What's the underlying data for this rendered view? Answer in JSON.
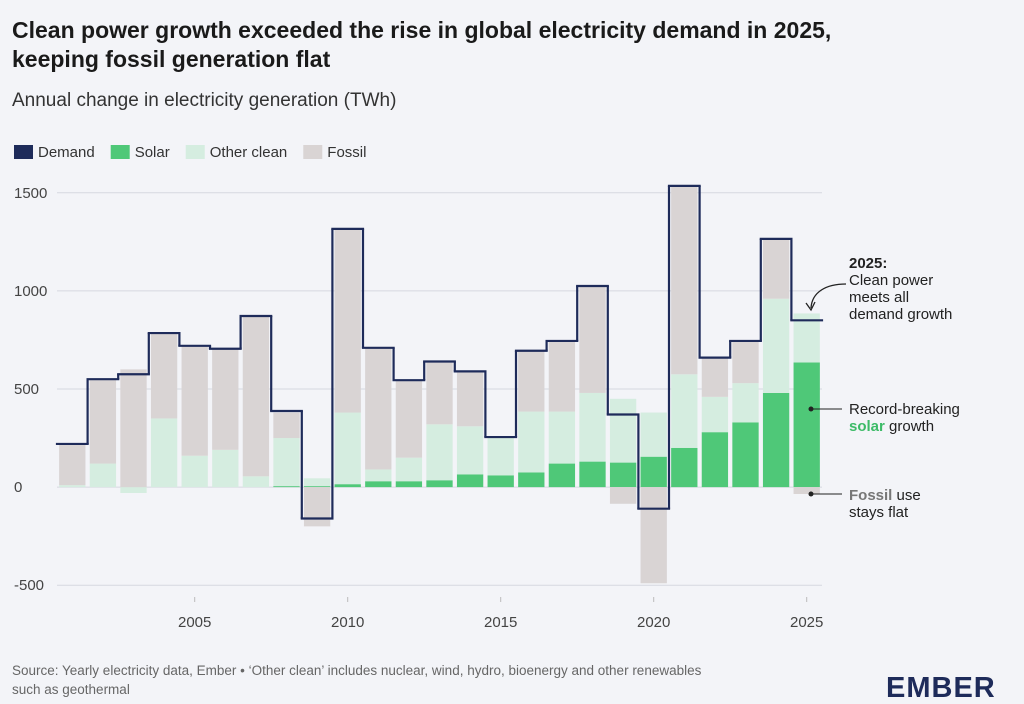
{
  "chart_data": {
    "type": "bar",
    "title": "Clean power growth exceeded the rise in global electricity demand in 2025,",
    "title_line2": "keeping fossil generation flat",
    "subtitle": "Annual change in electricity generation (TWh)",
    "stacked": true,
    "x": [
      2001,
      2002,
      2003,
      2004,
      2005,
      2006,
      2007,
      2008,
      2009,
      2010,
      2011,
      2012,
      2013,
      2014,
      2015,
      2016,
      2017,
      2018,
      2019,
      2020,
      2021,
      2022,
      2023,
      2024,
      2025
    ],
    "series": [
      {
        "name": "Solar",
        "color": "#4fc878",
        "values": [
          0,
          0,
          0,
          0,
          0,
          0,
          0,
          5,
          5,
          15,
          30,
          30,
          35,
          65,
          60,
          75,
          120,
          130,
          125,
          155,
          200,
          280,
          330,
          480,
          635
        ]
      },
      {
        "name": "Other clean",
        "color": "#d5ede0",
        "values": [
          10,
          120,
          -30,
          350,
          160,
          190,
          55,
          245,
          40,
          365,
          60,
          120,
          285,
          245,
          190,
          310,
          265,
          350,
          325,
          225,
          375,
          180,
          200,
          480,
          250
        ]
      },
      {
        "name": "Fossil",
        "color": "#d9d4d4",
        "values": [
          210,
          430,
          600,
          435,
          560,
          515,
          815,
          130,
          -200,
          940,
          620,
          395,
          320,
          280,
          5,
          310,
          360,
          545,
          -85,
          -490,
          960,
          200,
          215,
          305,
          -35
        ]
      }
    ],
    "line_series": {
      "name": "Demand",
      "color": "#1e2b5a",
      "values": [
        220,
        550,
        575,
        785,
        720,
        705,
        872,
        388,
        -160,
        1316,
        710,
        545,
        640,
        590,
        255,
        695,
        745,
        1025,
        370,
        -110,
        1535,
        660,
        745,
        1265,
        850
      ]
    },
    "xlim": [
      2000.5,
      2025.5
    ],
    "xticks": [
      2005,
      2010,
      2015,
      2020,
      2025
    ],
    "ylim": [
      -560,
      1560
    ],
    "yticks": [
      -500,
      0,
      500,
      1000,
      1500
    ],
    "grid": true,
    "legend": "top-left",
    "annotations": [
      {
        "lines": [
          [
            "2025:"
          ],
          [
            "Clean power"
          ],
          [
            "meets all"
          ],
          [
            "demand growth"
          ]
        ]
      },
      {
        "lines": [
          [
            "Record-breaking"
          ],
          [
            "solar",
            " growth"
          ]
        ]
      },
      {
        "lines": [
          [
            "Fossil",
            " use"
          ],
          [
            "stays flat"
          ]
        ]
      }
    ],
    "source": [
      "Source: Yearly electricity data, Ember • ‘Other clean’ includes nuclear, wind, hydro, bioenergy and other renewables",
      "such as geothermal"
    ],
    "logo": "EMBER"
  }
}
